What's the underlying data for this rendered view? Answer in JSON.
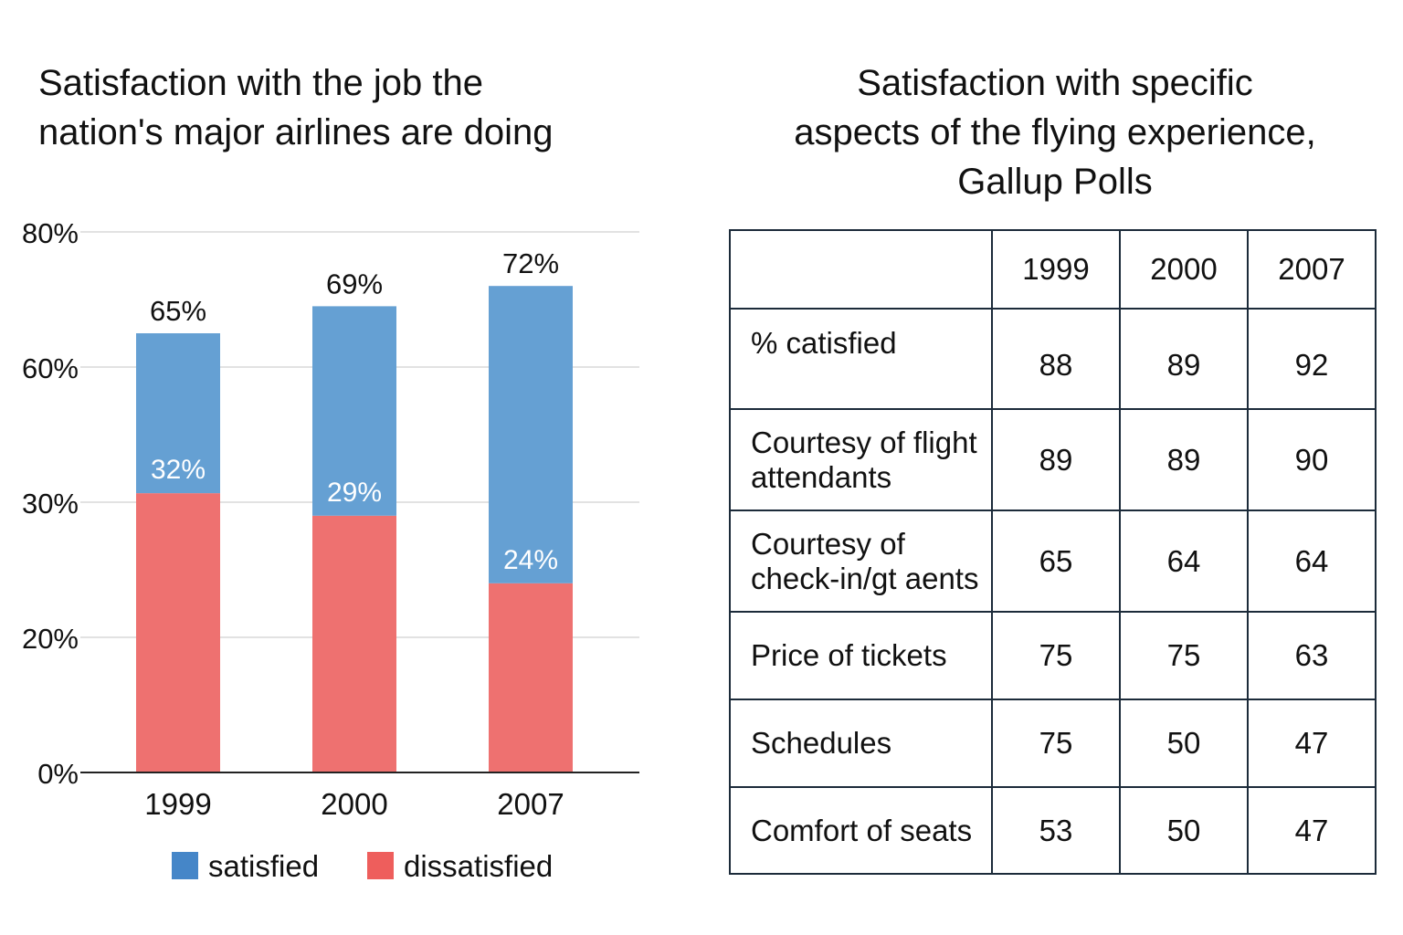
{
  "chart_data": [
    {
      "type": "bar",
      "stacked": true,
      "title": [
        "Satisfaction with the job the",
        "nation's major airlines are doing"
      ],
      "categories": [
        "1999",
        "2000",
        "2007"
      ],
      "series": [
        {
          "name": "dissatisfied",
          "color": "#ee7170",
          "values": [
            32,
            29,
            24
          ],
          "labels": [
            "32%",
            "29%",
            "24%"
          ]
        },
        {
          "name": "satisfied",
          "color": "#65a0d3",
          "values": [
            65,
            69,
            72
          ],
          "labels": [
            "65%",
            "69%",
            "72%"
          ]
        }
      ],
      "legend": [
        {
          "name": "satisfied",
          "color": "#4586c8"
        },
        {
          "name": "dissatisfied",
          "color": "#ee5e5c"
        }
      ],
      "legend_position": "bottom",
      "yticks": [
        {
          "value": 0,
          "label": "0%"
        },
        {
          "value": 20,
          "label": "20%"
        },
        {
          "value": 30,
          "label": "30%"
        },
        {
          "value": 60,
          "label": "60%"
        },
        {
          "value": 80,
          "label": "80%"
        }
      ],
      "grid": true
    },
    {
      "type": "table",
      "title": [
        "Satisfaction with specific",
        "aspects of the flying experience,",
        "Gallup Polls"
      ],
      "columns": [
        "",
        "1999",
        "2000",
        "2007"
      ],
      "rows": [
        {
          "label": [
            "% catisfied"
          ],
          "values": [
            "88",
            "89",
            "92"
          ]
        },
        {
          "label": [
            "Courtesy of flight",
            "attendants"
          ],
          "values": [
            "89",
            "89",
            "90"
          ]
        },
        {
          "label": [
            "Courtesy of",
            "check-in/gt aents"
          ],
          "values": [
            "65",
            "64",
            "64"
          ]
        },
        {
          "label": [
            "Price of tickets"
          ],
          "values": [
            "75",
            "75",
            "63"
          ]
        },
        {
          "label": [
            "Schedules"
          ],
          "values": [
            "75",
            "50",
            "47"
          ]
        },
        {
          "label": [
            "Comfort of seats"
          ],
          "values": [
            "53",
            "50",
            "47"
          ]
        }
      ]
    }
  ]
}
